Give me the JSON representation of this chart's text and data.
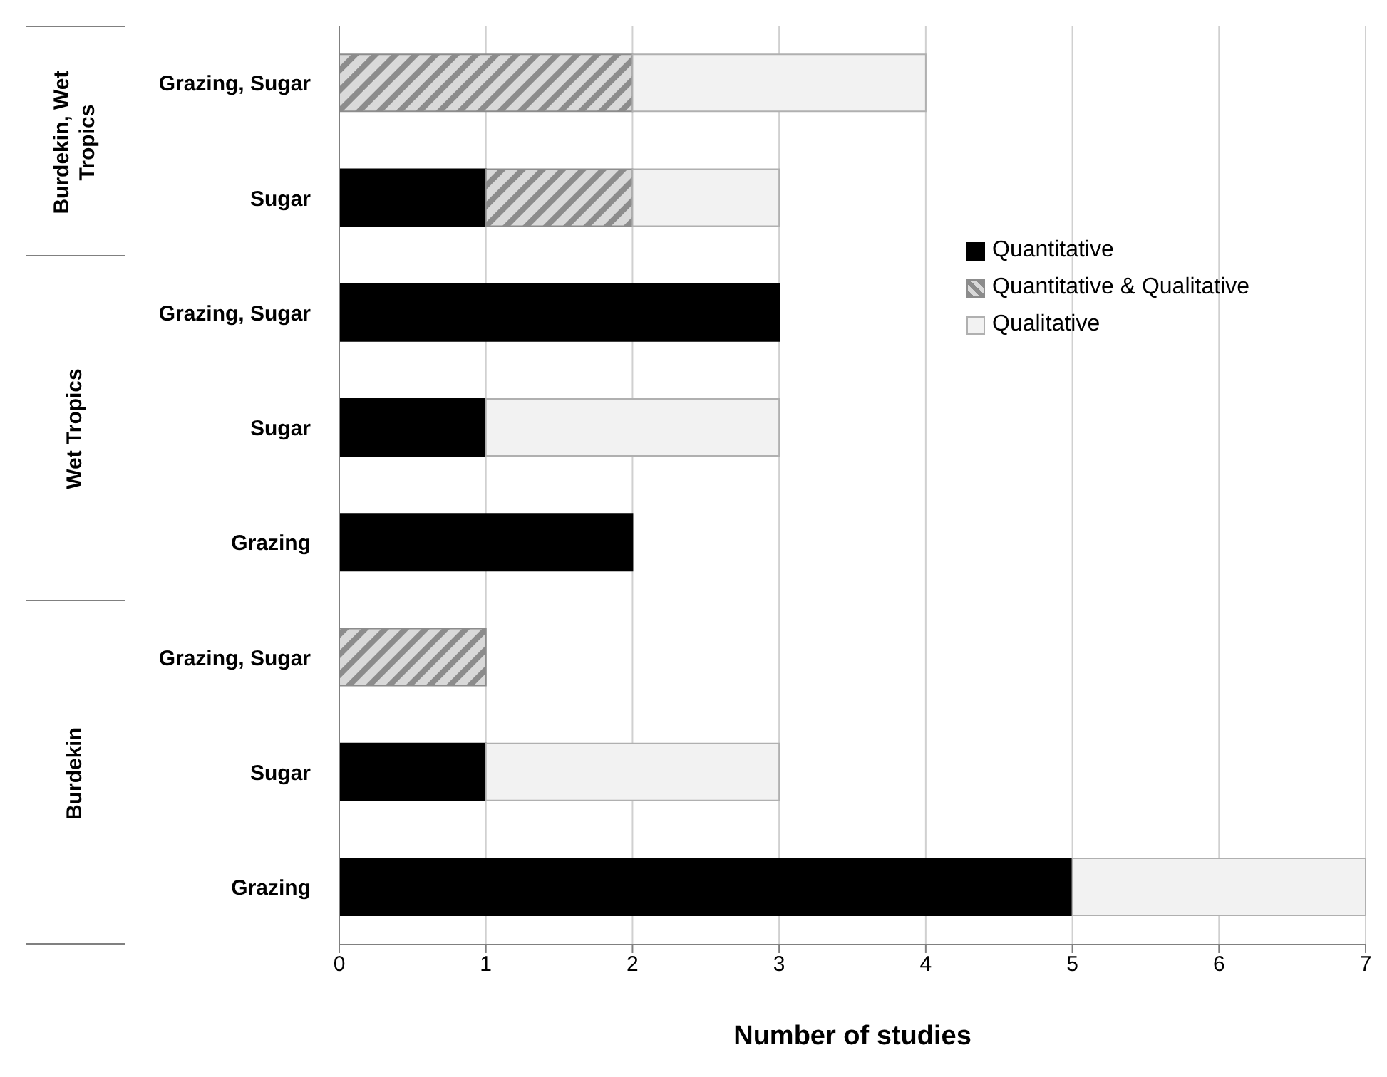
{
  "chart_data": {
    "type": "bar",
    "orientation": "horizontal",
    "stacked": true,
    "xlabel": "Number of studies",
    "categories": [
      "Grazing, Sugar",
      "Sugar",
      "Grazing, Sugar",
      "Sugar",
      "Grazing",
      "Grazing, Sugar",
      "Sugar",
      "Grazing"
    ],
    "annotations": [
      "Burdekin, Wet Tropics",
      "Wet Tropics",
      "Burdekin"
    ],
    "series": [
      {
        "name": "Quantitative",
        "color": "#000000",
        "values": [
          0,
          1,
          3,
          1,
          2,
          0,
          1,
          5
        ]
      },
      {
        "name": "Quantitative & Qualitative",
        "color": "#8c8c8c",
        "values": [
          2,
          1,
          0,
          0,
          0,
          1,
          0,
          0
        ]
      },
      {
        "name": "Qualitative",
        "color": "#f2f2f2",
        "values": [
          2,
          1,
          0,
          2,
          0,
          0,
          2,
          2
        ]
      }
    ],
    "xlim": [
      0,
      7
    ],
    "xticks": [
      0,
      1,
      2,
      3,
      4,
      5,
      6,
      7
    ],
    "grid": "x",
    "legend": "right"
  }
}
